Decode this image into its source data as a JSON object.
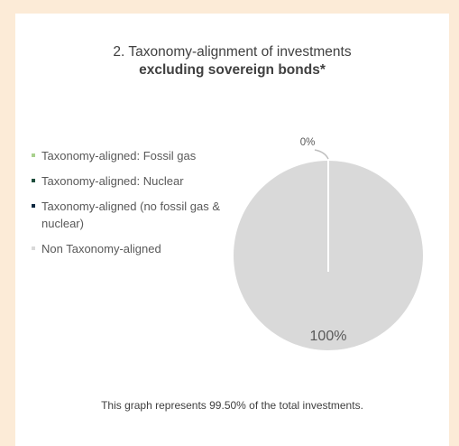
{
  "page": {
    "title_line1": "2. Taxonomy-alignment of investments",
    "title_line2": "excluding sovereign bonds*",
    "footnote": "This graph represents 99.50% of the total investments."
  },
  "chart_data": {
    "type": "pie",
    "legend_position": "left",
    "series": [
      {
        "name": "Taxonomy-aligned: Fossil gas",
        "value": 0,
        "color": "#a9d18e"
      },
      {
        "name": "Taxonomy-aligned: Nuclear",
        "value": 0,
        "color": "#1f4e3d"
      },
      {
        "name": "Taxonomy-aligned (no fossil gas & nuclear)",
        "value": 0,
        "color": "#0d2840"
      },
      {
        "name": "Non Taxonomy-aligned",
        "value": 100,
        "color": "#d9d9d9"
      }
    ],
    "labels": {
      "aligned": "0%",
      "non_aligned": "100%"
    }
  }
}
